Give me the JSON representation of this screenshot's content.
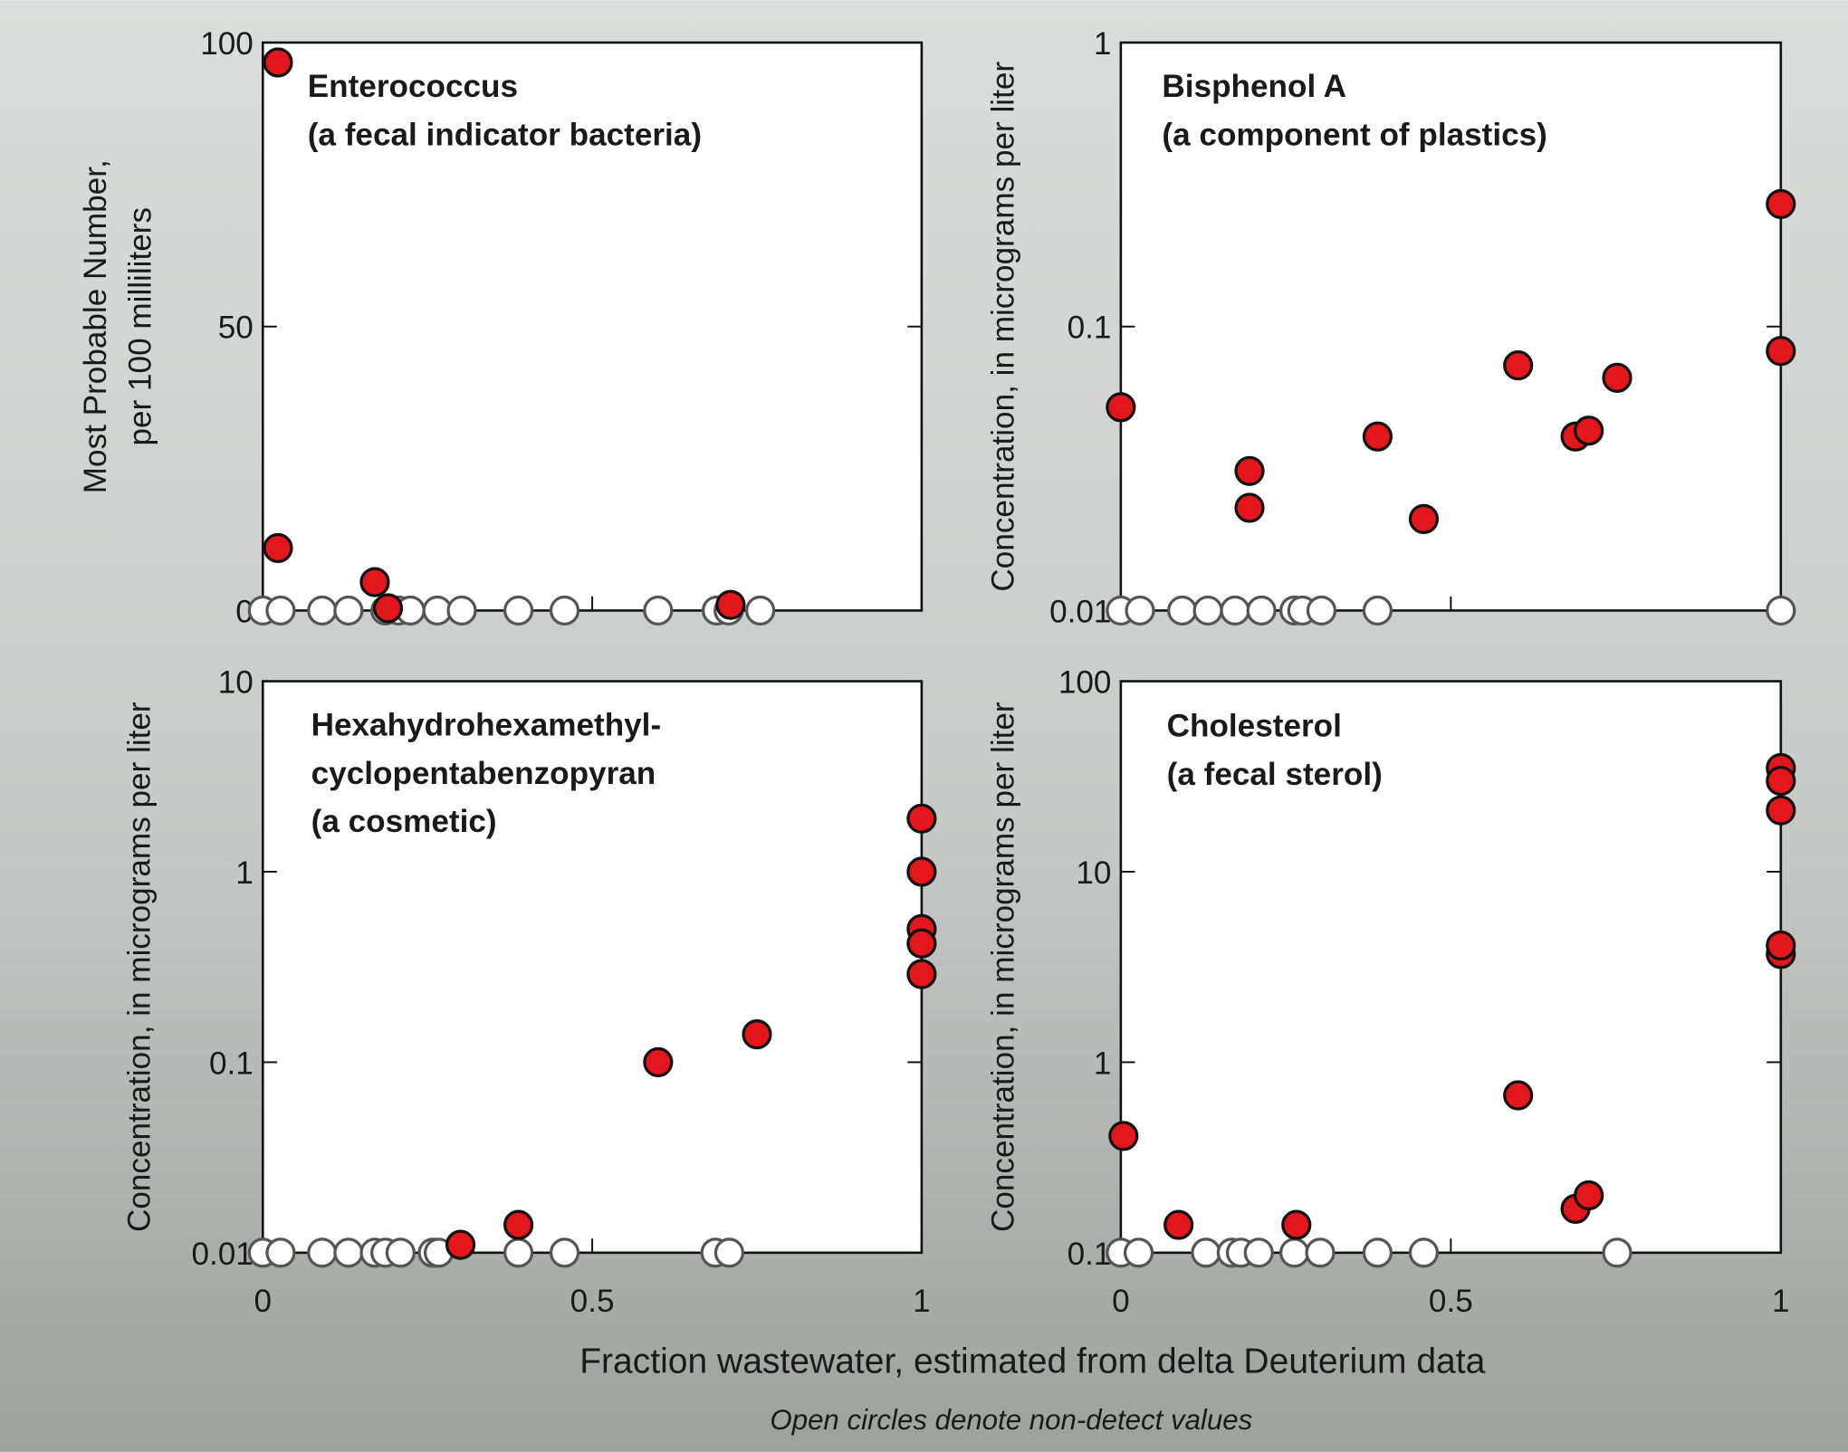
{
  "chart_data": [
    {
      "type": "scatter",
      "title": [
        "Enterococcus",
        "(a fecal indicator bacteria)"
      ],
      "y_label": [
        "Most Probable Number,",
        "per 100 milliliters"
      ],
      "xlim": [
        0,
        1
      ],
      "xticks": [
        0,
        0.5,
        1
      ],
      "x_tick_labels": false,
      "ylim": [
        0,
        100
      ],
      "yticks": [
        0,
        50,
        100
      ],
      "log_y": false,
      "series": [
        {
          "color": "#e3161b",
          "x": [
            0.023,
            0.023,
            0.17,
            0.19,
            0.71
          ],
          "values": [
            96.5,
            11,
            5,
            0.4,
            1
          ]
        },
        {
          "color": "#ffffff",
          "x": [
            0,
            0.027,
            0.09,
            0.13,
            0.186,
            0.206,
            0.224,
            0.265,
            0.302,
            0.388,
            0.458,
            0.6,
            0.689,
            0.707,
            0.755
          ],
          "values": [
            0,
            0,
            0,
            0,
            0,
            0,
            0,
            0,
            0,
            0,
            0,
            0,
            0,
            0,
            0
          ]
        }
      ]
    },
    {
      "type": "scatter",
      "title": [
        "Bisphenol A",
        "(a component of plastics)"
      ],
      "y_label": [
        "Concentration, in micrograms per liter"
      ],
      "xlim": [
        0,
        1
      ],
      "xticks": [
        0,
        0.5,
        1
      ],
      "x_tick_labels": false,
      "ylim": [
        0.01,
        1
      ],
      "yticks": [
        0.01,
        0.1,
        1
      ],
      "log_y": true,
      "series": [
        {
          "color": "#e3161b",
          "x": [
            0,
            0.195,
            0.195,
            0.389,
            0.459,
            0.602,
            0.689,
            0.709,
            0.752,
            1,
            1
          ],
          "values": [
            0.052,
            0.031,
            0.023,
            0.041,
            0.021,
            0.073,
            0.041,
            0.043,
            0.066,
            0.27,
            0.082
          ]
        },
        {
          "color": "#ffffff",
          "x": [
            0,
            0.029,
            0.093,
            0.132,
            0.173,
            0.213,
            0.263,
            0.275,
            0.304,
            0.389,
            1
          ],
          "values": [
            0.01,
            0.01,
            0.01,
            0.01,
            0.01,
            0.01,
            0.01,
            0.01,
            0.01,
            0.01,
            0.01
          ]
        }
      ]
    },
    {
      "type": "scatter",
      "title": [
        "Hexahydrohexamethyl-",
        "cyclopentabenzopyran",
        "(a cosmetic)"
      ],
      "y_label": [
        "Concentration, in micrograms per liter"
      ],
      "xlim": [
        0,
        1
      ],
      "xticks": [
        0,
        0.5,
        1
      ],
      "x_tick_labels": true,
      "ylim": [
        0.01,
        10
      ],
      "yticks": [
        0.01,
        0.1,
        1,
        10
      ],
      "log_y": true,
      "series": [
        {
          "color": "#e3161b",
          "x": [
            0.3,
            0.388,
            0.6,
            0.75,
            1,
            1,
            1,
            1,
            1
          ],
          "values": [
            0.011,
            0.014,
            0.1,
            0.14,
            1.9,
            1,
            0.5,
            0.42,
            0.29
          ]
        },
        {
          "color": "#ffffff",
          "x": [
            0,
            0.027,
            0.09,
            0.13,
            0.17,
            0.186,
            0.209,
            0.258,
            0.267,
            0.388,
            0.458,
            0.687,
            0.708
          ],
          "values": [
            0.01,
            0.01,
            0.01,
            0.01,
            0.01,
            0.01,
            0.01,
            0.01,
            0.01,
            0.01,
            0.01,
            0.01,
            0.01
          ]
        }
      ]
    },
    {
      "type": "scatter",
      "title": [
        "Cholesterol",
        "(a fecal sterol)"
      ],
      "y_label": [
        "Concentration, in micrograms per liter"
      ],
      "xlim": [
        0,
        1
      ],
      "xticks": [
        0,
        0.5,
        1
      ],
      "x_tick_labels": true,
      "ylim": [
        0.1,
        100
      ],
      "yticks": [
        0.1,
        1,
        10,
        100
      ],
      "log_y": true,
      "series": [
        {
          "color": "#e3161b",
          "x": [
            0.004,
            0.0875,
            0.266,
            0.602,
            0.689,
            0.709,
            1,
            1,
            1,
            1,
            1
          ],
          "values": [
            0.41,
            0.14,
            0.14,
            0.67,
            0.17,
            0.2,
            35,
            30,
            21,
            3.7,
            4.1
          ]
        },
        {
          "color": "#ffffff",
          "x": [
            0,
            0.027,
            0.129,
            0.168,
            0.182,
            0.209,
            0.263,
            0.302,
            0.389,
            0.459,
            0.752
          ],
          "values": [
            0.1,
            0.1,
            0.1,
            0.1,
            0.1,
            0.1,
            0.1,
            0.1,
            0.1,
            0.1,
            0.1
          ]
        }
      ]
    }
  ],
  "x_label": "Fraction wastewater, estimated from delta Deuterium data",
  "note": "Open circles denote non-detect values"
}
